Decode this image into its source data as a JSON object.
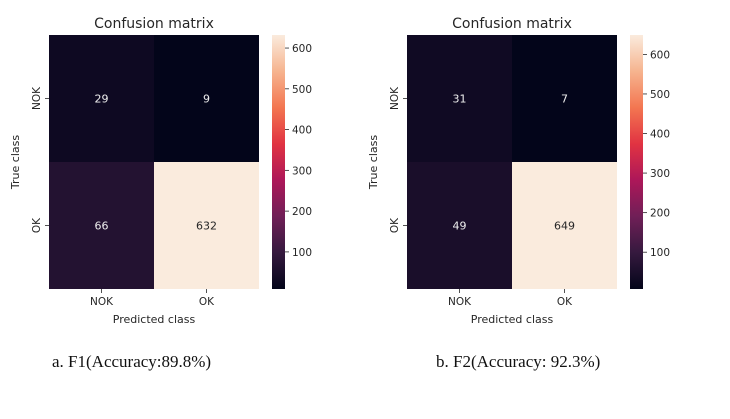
{
  "chart_data": [
    {
      "type": "heatmap",
      "title": "Confusion matrix",
      "xlabel": "Predicted class",
      "ylabel": "True class",
      "x_categories": [
        "NOK",
        "OK"
      ],
      "y_categories": [
        "NOK",
        "OK"
      ],
      "values": [
        [
          29,
          9
        ],
        [
          66,
          632
        ]
      ],
      "colorbar": {
        "ticks": [
          100,
          200,
          300,
          400,
          500,
          600
        ],
        "vmin": 9,
        "vmax": 632
      },
      "colormap": "rocket",
      "caption": "a.  F1(Accuracy:89.8%)"
    },
    {
      "type": "heatmap",
      "title": "Confusion matrix",
      "xlabel": "Predicted class",
      "ylabel": "True class",
      "x_categories": [
        "NOK",
        "OK"
      ],
      "y_categories": [
        "NOK",
        "OK"
      ],
      "values": [
        [
          31,
          7
        ],
        [
          49,
          649
        ]
      ],
      "colorbar": {
        "ticks": [
          100,
          200,
          300,
          400,
          500,
          600
        ],
        "vmin": 7,
        "vmax": 649
      },
      "colormap": "rocket",
      "caption": "b.  F2(Accuracy: 92.3%)"
    }
  ],
  "colors": {
    "rocket_stops": [
      "#03051a",
      "#35193e",
      "#701f57",
      "#ad1759",
      "#e13342",
      "#f37651",
      "#f6b48f",
      "#faebdd"
    ],
    "light_text": "#eeeeee",
    "dark_text": "#262626"
  }
}
